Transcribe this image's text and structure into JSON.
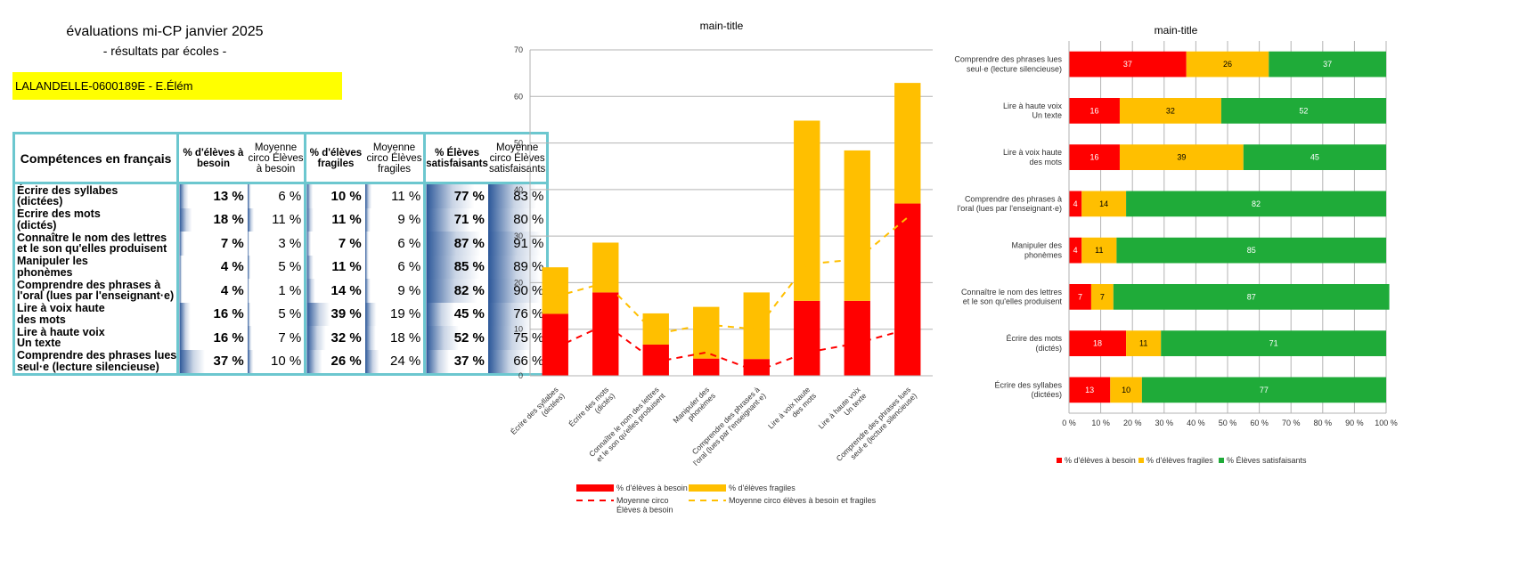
{
  "header": {
    "title": "évaluations mi-CP janvier 2025",
    "subtitle": "- résultats par écoles -",
    "school": "LALANDELLE-0600189E - E.Élém"
  },
  "table": {
    "headers": {
      "competence": "Compétences en français",
      "besoin": "% d'élèves à besoin",
      "moy_besoin": "Moyenne circo Élèves à besoin",
      "fragiles": "% d'élèves fragiles",
      "moy_fragiles": "Moyenne circo Élèves fragiles",
      "satisfaisants": "% Élèves satisfaisants",
      "moy_satisfaisants": "Moyenne circo Élèves satisfaisants"
    },
    "rows": [
      {
        "label": "Écrire des syllabes\n(dictées)",
        "besoin": "13 %",
        "moy_besoin": "6 %",
        "fragiles": "10 %",
        "moy_fragiles": "11 %",
        "satisfaisants": "77 %",
        "moy_satisfaisants": "83 %"
      },
      {
        "label": "Écrire des mots\n(dictés)",
        "besoin": "18 %",
        "moy_besoin": "11 %",
        "fragiles": "11 %",
        "moy_fragiles": "9 %",
        "satisfaisants": "71 %",
        "moy_satisfaisants": "80 %"
      },
      {
        "label": "Connaître le nom des lettres\net le son qu'elles produisent",
        "besoin": "7 %",
        "moy_besoin": "3 %",
        "fragiles": "7 %",
        "moy_fragiles": "6 %",
        "satisfaisants": "87 %",
        "moy_satisfaisants": "91 %"
      },
      {
        "label": "Manipuler les\nphonèmes",
        "besoin": "4 %",
        "moy_besoin": "5 %",
        "fragiles": "11 %",
        "moy_fragiles": "6 %",
        "satisfaisants": "85 %",
        "moy_satisfaisants": "89 %"
      },
      {
        "label": "Comprendre des phrases à\nl'oral (lues par l'enseignant·e)",
        "besoin": "4 %",
        "moy_besoin": "1 %",
        "fragiles": "14 %",
        "moy_fragiles": "9 %",
        "satisfaisants": "82 %",
        "moy_satisfaisants": "90 %"
      },
      {
        "label": "Lire à voix haute\ndes mots",
        "besoin": "16 %",
        "moy_besoin": "5 %",
        "fragiles": "39 %",
        "moy_fragiles": "19 %",
        "satisfaisants": "45 %",
        "moy_satisfaisants": "76 %"
      },
      {
        "label": "Lire à haute voix\nUn texte",
        "besoin": "16 %",
        "moy_besoin": "7 %",
        "fragiles": "32 %",
        "moy_fragiles": "18 %",
        "satisfaisants": "52 %",
        "moy_satisfaisants": "75 %"
      },
      {
        "label": "Comprendre des phrases lues\nseul·e (lecture silencieuse)",
        "besoin": "37 %",
        "moy_besoin": "10 %",
        "fragiles": "26 %",
        "moy_fragiles": "24 %",
        "satisfaisants": "37 %",
        "moy_satisfaisants": "66 %"
      }
    ]
  },
  "chart_data": [
    {
      "type": "bar",
      "stacked": true,
      "title": "main-title",
      "categories": [
        "Écrire des syllabes\n(dictées)",
        "Écrire des mots\n(dictés)",
        "Connaître le nom des lettres\net le son qu'elles produisent",
        "Manipuler des\nphonèmes",
        "Comprendre des phrases à\nl'oral (lues par l'enseignant·e)",
        "Lire à voix haute\ndes mots",
        "Lire à haute voix\nUn texte",
        "Comprendre des phrases lues\nseul·e (lecture silencieuse)"
      ],
      "series": [
        {
          "name": "% d'élèves à besoin",
          "kind": "bar",
          "color": "#ff0000",
          "values": [
            13.3,
            17.9,
            6.7,
            3.7,
            3.6,
            16.1,
            16.1,
            37.0
          ]
        },
        {
          "name": "% d'élèves fragiles",
          "kind": "bar",
          "color": "#ffbf00",
          "values": [
            10.0,
            10.7,
            6.7,
            11.1,
            14.3,
            38.7,
            32.3,
            25.9
          ]
        },
        {
          "name": "Moyenne circo\nÉlèves à besoin",
          "kind": "line",
          "dash": true,
          "color": "#ff0000",
          "values": [
            6,
            11,
            3,
            5,
            1,
            5,
            7,
            10
          ]
        },
        {
          "name": "Moyenne circo élèves à besoin et fragiles",
          "kind": "line",
          "dash": true,
          "color": "#ffbf00",
          "values": [
            17,
            20,
            9,
            11,
            10,
            24,
            25,
            34
          ]
        }
      ],
      "ylim": [
        0,
        70
      ],
      "yticks": [
        0,
        10,
        20,
        30,
        40,
        50,
        60,
        70
      ],
      "grid": true,
      "legend": "bottom"
    },
    {
      "type": "bar",
      "orientation": "horizontal",
      "stacked_percent": true,
      "title": "main-title",
      "categories": [
        "Comprendre des phrases lues\nseul·e (lecture silencieuse)",
        "Lire à haute voix\nUn texte",
        "Lire à voix haute\ndes mots",
        "Comprendre des phrases à\nl'oral (lues par l'enseignant·e)",
        "Manipuler des\nphonèmes",
        "Connaître le nom des lettres\net le son qu'elles produisent",
        "Écrire des mots\n(dictés)",
        "Écrire des syllabes\n(dictées)"
      ],
      "series": [
        {
          "name": "% d'élèves à besoin",
          "color": "#ff0000",
          "values": [
            37,
            16,
            16,
            4,
            4,
            7,
            18,
            13
          ]
        },
        {
          "name": "% d'élèves fragiles",
          "color": "#ffbf00",
          "values": [
            26,
            32,
            39,
            14,
            11,
            7,
            11,
            10
          ]
        },
        {
          "name": "% Élèves satisfaisants",
          "color": "#1fab39",
          "values": [
            37,
            52,
            45,
            82,
            85,
            87,
            71,
            77
          ]
        }
      ],
      "xticks": [
        "0 %",
        "10 %",
        "20 %",
        "30 %",
        "40 %",
        "50 %",
        "60 %",
        "70 %",
        "80 %",
        "90 %",
        "100 %"
      ],
      "xlim": [
        0,
        100
      ],
      "grid": true,
      "legend": "bottom"
    }
  ]
}
